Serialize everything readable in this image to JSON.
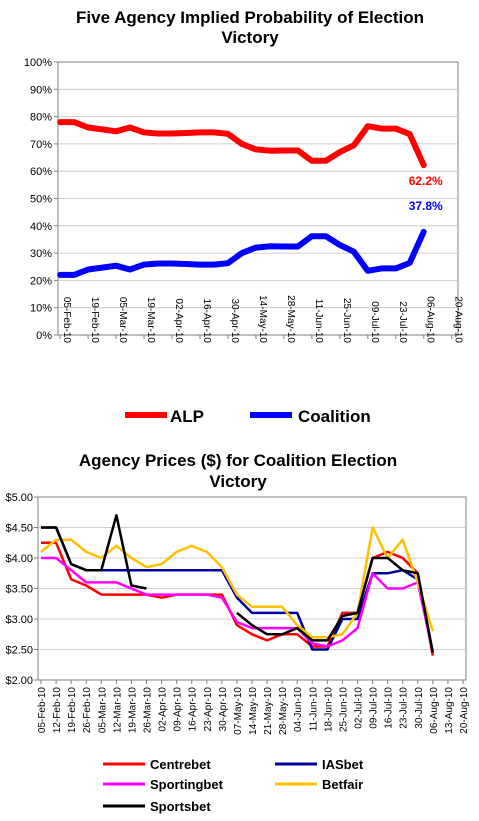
{
  "chart_data": [
    {
      "type": "line",
      "title_line1": "Five Agency Implied Probability of Election",
      "title_line2": "Victory",
      "categories": [
        "05-Feb-10",
        "12-Feb-10",
        "19-Feb-10",
        "26-Feb-10",
        "05-Mar-10",
        "12-Mar-10",
        "19-Mar-10",
        "26-Mar-10",
        "02-Apr-10",
        "09-Apr-10",
        "16-Apr-10",
        "23-Apr-10",
        "30-Apr-10",
        "07-May-10",
        "14-May-10",
        "21-May-10",
        "28-May-10",
        "04-Jun-10",
        "11-Jun-10",
        "18-Jun-10",
        "25-Jun-10",
        "02-Jul-10",
        "09-Jul-10",
        "16-Jul-10",
        "23-Jul-10",
        "30-Jul-10",
        "06-Aug-10",
        "13-Aug-10",
        "20-Aug-10"
      ],
      "tick_labels": [
        "05-Feb-10",
        "19-Feb-10",
        "05-Mar-10",
        "19-Mar-10",
        "02-Apr-10",
        "16-Apr-10",
        "30-Apr-10",
        "14-May-10",
        "28-May-10",
        "11-Jun-10",
        "25-Jun-10",
        "09-Jul-10",
        "23-Jul-10",
        "06-Aug-10",
        "20-Aug-10"
      ],
      "ylim": [
        0,
        100
      ],
      "y_ticks": [
        "0%",
        "10%",
        "20%",
        "30%",
        "40%",
        "50%",
        "60%",
        "70%",
        "80%",
        "90%",
        "100%"
      ],
      "series": [
        {
          "name": "ALP",
          "color": "#ff0000",
          "values": [
            78.0,
            78.0,
            76.0,
            75.3,
            74.6,
            76.0,
            74.2,
            73.8,
            73.8,
            74.0,
            74.2,
            74.2,
            73.7,
            70.0,
            68.0,
            67.5,
            67.6,
            67.6,
            63.8,
            63.8,
            67.0,
            69.5,
            76.5,
            75.6,
            75.6,
            73.6,
            62.2,
            null,
            null
          ]
        },
        {
          "name": "Coalition",
          "color": "#0000ff",
          "values": [
            22.0,
            22.0,
            24.0,
            24.7,
            25.4,
            24.0,
            25.8,
            26.2,
            26.2,
            26.0,
            25.8,
            25.8,
            26.3,
            30.0,
            32.0,
            32.5,
            32.4,
            32.4,
            36.2,
            36.2,
            33.0,
            30.5,
            23.5,
            24.4,
            24.4,
            26.4,
            37.8,
            null,
            null
          ]
        }
      ],
      "data_labels": [
        {
          "series": "ALP",
          "text": "62.2%"
        },
        {
          "series": "Coalition",
          "text": "37.8%"
        }
      ]
    },
    {
      "type": "line",
      "title_line1": "Agency Prices ($) for Coalition Election",
      "title_line2": "Victory",
      "categories": [
        "05-Feb-10",
        "12-Feb-10",
        "19-Feb-10",
        "26-Feb-10",
        "05-Mar-10",
        "12-Mar-10",
        "19-Mar-10",
        "26-Mar-10",
        "02-Apr-10",
        "09-Apr-10",
        "16-Apr-10",
        "23-Apr-10",
        "30-Apr-10",
        "07-May-10",
        "14-May-10",
        "21-May-10",
        "28-May-10",
        "04-Jun-10",
        "11-Jun-10",
        "18-Jun-10",
        "25-Jun-10",
        "02-Jul-10",
        "09-Jul-10",
        "16-Jul-10",
        "23-Jul-10",
        "30-Jul-10",
        "06-Aug-10",
        "13-Aug-10",
        "20-Aug-10"
      ],
      "ylim": [
        2.0,
        5.0
      ],
      "y_ticks": [
        "$2.00",
        "$2.50",
        "$3.00",
        "$3.50",
        "$4.00",
        "$4.50",
        "$5.00"
      ],
      "series": [
        {
          "name": "Centrebet",
          "color": "#ff0000",
          "values": [
            4.25,
            4.25,
            3.65,
            3.55,
            3.4,
            3.4,
            3.4,
            3.4,
            3.35,
            3.4,
            3.4,
            3.4,
            3.4,
            2.9,
            2.75,
            2.65,
            2.75,
            2.75,
            2.55,
            2.55,
            3.1,
            3.1,
            4.0,
            4.1,
            4.0,
            3.75,
            2.4,
            null,
            null
          ]
        },
        {
          "name": "IASbet",
          "color": "#0000a0",
          "values": [
            4.5,
            4.5,
            3.9,
            3.8,
            3.8,
            3.8,
            3.8,
            3.8,
            3.8,
            3.8,
            3.8,
            3.8,
            3.8,
            3.35,
            3.1,
            3.1,
            3.1,
            3.1,
            2.5,
            2.5,
            3.0,
            3.0,
            3.75,
            3.75,
            3.8,
            3.65,
            2.45,
            null,
            null
          ]
        },
        {
          "name": "Sportingbet",
          "color": "#ff00ff",
          "values": [
            4.0,
            4.0,
            3.8,
            3.6,
            3.6,
            3.6,
            3.5,
            3.4,
            3.4,
            3.4,
            3.4,
            3.4,
            3.35,
            2.95,
            2.85,
            2.85,
            2.85,
            2.85,
            2.6,
            2.55,
            2.65,
            2.85,
            3.75,
            3.5,
            3.5,
            3.6,
            2.45,
            null,
            null
          ]
        },
        {
          "name": "Betfair",
          "color": "#ffc000",
          "values": [
            4.1,
            4.3,
            4.3,
            4.1,
            4.0,
            4.2,
            4.0,
            3.85,
            3.9,
            4.1,
            4.2,
            4.1,
            3.85,
            3.4,
            3.2,
            3.2,
            3.2,
            2.9,
            2.7,
            2.7,
            2.75,
            3.1,
            4.5,
            4.0,
            4.3,
            3.6,
            2.8,
            null,
            null
          ]
        },
        {
          "name": "Sportsbet",
          "color": "#000000",
          "values": [
            4.5,
            4.5,
            3.9,
            3.8,
            3.8,
            4.7,
            3.55,
            3.5,
            null,
            null,
            null,
            null,
            null,
            3.1,
            2.9,
            2.75,
            2.75,
            2.85,
            2.65,
            2.65,
            3.05,
            3.1,
            4.0,
            4.0,
            3.8,
            3.75,
            2.45,
            null,
            null
          ]
        }
      ]
    }
  ]
}
